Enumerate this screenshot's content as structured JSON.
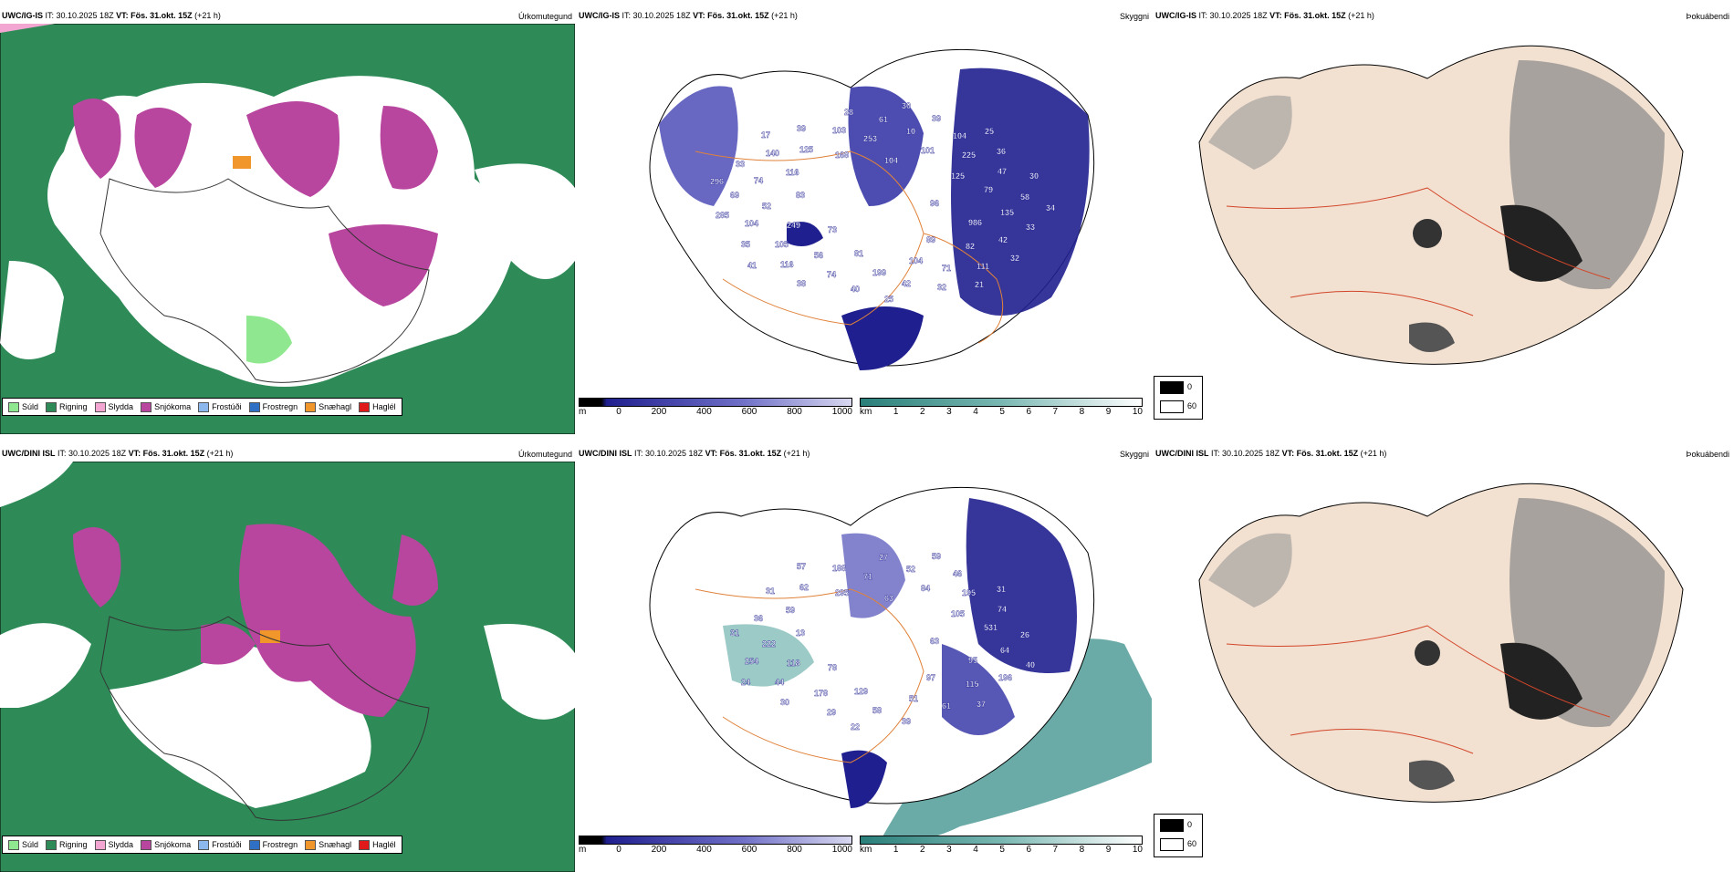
{
  "rows": [
    {
      "model": "UWC/IG-IS",
      "it": "IT: 30.10.2025 18Z",
      "vt": "VT: Fös. 31.okt. 15Z",
      "lead": "(+21 h)",
      "labels_cloud": [
        "96",
        "73",
        "104",
        "89",
        "83",
        "125",
        "81",
        "168",
        "986",
        "249",
        "101",
        "104",
        "116",
        "79",
        "56",
        "253",
        "82",
        "52",
        "225",
        "199",
        "125",
        "135",
        "105",
        "10",
        "71",
        "74",
        "47",
        "74",
        "103",
        "42",
        "104",
        "104",
        "42",
        "140",
        "58",
        "116",
        "61",
        "111",
        "69",
        "36",
        "40",
        "39",
        "33",
        "35",
        "39",
        "32",
        "33",
        "30",
        "38",
        "28",
        "32",
        "285",
        "25",
        "25",
        "17",
        "34",
        "41",
        "30",
        "21",
        "296"
      ]
    },
    {
      "model": "UWC/DINI ISL",
      "it": "IT: 30.10.2025 18Z",
      "vt": "VT: Fös. 31.okt. 15Z",
      "lead": "(+21 h)",
      "labels_cloud": [
        "63",
        "78",
        "63",
        "97",
        "13",
        "105",
        "129",
        "295",
        "95",
        "118",
        "84",
        "51",
        "59",
        "531",
        "178",
        "71",
        "115",
        "222",
        "195",
        "58",
        "62",
        "64",
        "44",
        "52",
        "61",
        "36",
        "74",
        "29",
        "188",
        "196",
        "254",
        "46",
        "39",
        "31",
        "26",
        "30",
        "27",
        "37",
        "31",
        "31",
        "22",
        "57",
        "40",
        "24",
        "59"
      ]
    }
  ],
  "titles": {
    "precip": "Úrkomutegund",
    "cloud": "Skyggni",
    "fog": "Þokuábendi"
  },
  "precip_legend": [
    {
      "label": "Súld",
      "color": "#8fe88f"
    },
    {
      "label": "Rigning",
      "color": "#2e8b57"
    },
    {
      "label": "Slydda",
      "color": "#f4a6d2"
    },
    {
      "label": "Snjókoma",
      "color": "#b8459e"
    },
    {
      "label": "Frostúði",
      "color": "#8db8ee"
    },
    {
      "label": "Frostregn",
      "color": "#2f6fc4"
    },
    {
      "label": "Snæhagl",
      "color": "#f0962a"
    },
    {
      "label": "Haglél",
      "color": "#e01a1a"
    }
  ],
  "cloud_bar": {
    "unit": "m",
    "ticks": [
      "0",
      "200",
      "400",
      "600",
      "800",
      "1000"
    ]
  },
  "vis_bar": {
    "unit": "km",
    "ticks": [
      "1",
      "2",
      "3",
      "4",
      "5",
      "6",
      "7",
      "8",
      "9",
      "10"
    ]
  },
  "fog_legend": [
    "0",
    "60"
  ]
}
